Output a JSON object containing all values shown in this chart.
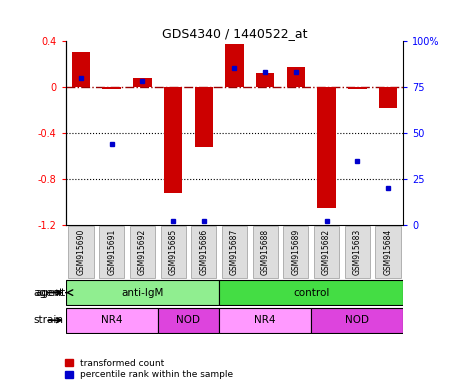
{
  "title": "GDS4340 / 1440522_at",
  "samples": [
    "GSM915690",
    "GSM915691",
    "GSM915692",
    "GSM915685",
    "GSM915686",
    "GSM915687",
    "GSM915688",
    "GSM915689",
    "GSM915682",
    "GSM915683",
    "GSM915684"
  ],
  "transformed_count": [
    0.3,
    -0.02,
    0.08,
    -0.92,
    -0.52,
    0.37,
    0.12,
    0.17,
    -1.05,
    -0.02,
    -0.18
  ],
  "percentile_rank": [
    80,
    44,
    78,
    2,
    2,
    85,
    83,
    83,
    2,
    35,
    20
  ],
  "agent_groups": [
    {
      "label": "anti-IgM",
      "start": 0,
      "end": 5,
      "color": "#90EE90"
    },
    {
      "label": "control",
      "start": 5,
      "end": 11,
      "color": "#44DD44"
    }
  ],
  "strain_groups": [
    {
      "label": "NR4",
      "start": 0,
      "end": 3,
      "color": "#FF99FF"
    },
    {
      "label": "NOD",
      "start": 3,
      "end": 5,
      "color": "#DD44DD"
    },
    {
      "label": "NR4",
      "start": 5,
      "end": 8,
      "color": "#FF99FF"
    },
    {
      "label": "NOD",
      "start": 8,
      "end": 11,
      "color": "#DD44DD"
    }
  ],
  "bar_color": "#CC0000",
  "dot_color": "#0000CC",
  "ylim_left": [
    -1.2,
    0.4
  ],
  "ylim_right": [
    0,
    100
  ],
  "yticks_left": [
    -1.2,
    -0.8,
    -0.4,
    0.0,
    0.4
  ],
  "yticks_right": [
    0,
    25,
    50,
    75,
    100
  ],
  "hline_y": 0.0,
  "dotted_lines": [
    -0.4,
    -0.8
  ],
  "background_color": "#ffffff",
  "agent_label": "agent",
  "strain_label": "strain",
  "legend_labels": [
    "transformed count",
    "percentile rank within the sample"
  ]
}
